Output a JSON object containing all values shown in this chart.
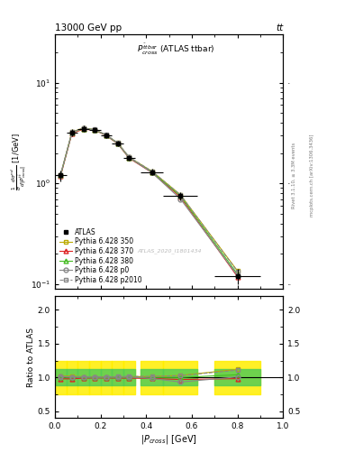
{
  "title_left": "13000 GeV pp",
  "title_right": "tt",
  "plot_title": "$P^{\\bar{t}tbar}_{cross}$ (ATLAS ttbar)",
  "xlabel": "$|P_{cross}|$ [GeV]",
  "ylabel_main": "$\\frac{1}{\\sigma}\\frac{d\\sigma^{nd}}{d|P^{t\\bar{t}}_{cross}|}$ [1/GeV]",
  "ylabel_ratio": "Ratio to ATLAS",
  "watermark": "ATLAS_2020_I1801434",
  "rivet_label": "Rivet 3.1.10, ≥ 3.3M events",
  "mcplots_label": "mcplots.cern.ch [arXiv:1306.3436]",
  "x_data": [
    0.025,
    0.075,
    0.125,
    0.175,
    0.225,
    0.275,
    0.325,
    0.425,
    0.55,
    0.8
  ],
  "xerr": [
    0.025,
    0.025,
    0.025,
    0.025,
    0.025,
    0.025,
    0.025,
    0.05,
    0.075,
    0.1
  ],
  "atlas_y": [
    1.2,
    3.2,
    3.5,
    3.4,
    3.0,
    2.5,
    1.8,
    1.3,
    0.75,
    0.12
  ],
  "atlas_yerr_lo": [
    0.15,
    0.25,
    0.25,
    0.2,
    0.2,
    0.15,
    0.12,
    0.1,
    0.07,
    0.02
  ],
  "atlas_yerr_hi": [
    0.15,
    0.25,
    0.25,
    0.2,
    0.2,
    0.15,
    0.12,
    0.1,
    0.07,
    0.02
  ],
  "py350_y": [
    1.22,
    3.25,
    3.55,
    3.42,
    3.02,
    2.52,
    1.82,
    1.32,
    0.77,
    0.135
  ],
  "py370_y": [
    1.18,
    3.15,
    3.45,
    3.38,
    2.98,
    2.48,
    1.78,
    1.28,
    0.73,
    0.118
  ],
  "py380_y": [
    1.2,
    3.2,
    3.5,
    3.4,
    3.0,
    2.5,
    1.8,
    1.3,
    0.75,
    0.125
  ],
  "pyp0_y": [
    1.22,
    3.22,
    3.52,
    3.41,
    3.01,
    2.51,
    1.81,
    1.28,
    0.7,
    0.121
  ],
  "pyp2010_y": [
    1.21,
    3.23,
    3.53,
    3.43,
    3.03,
    2.53,
    1.83,
    1.32,
    0.77,
    0.133
  ],
  "ratio_py350": [
    1.02,
    1.02,
    1.01,
    1.01,
    1.01,
    1.01,
    1.01,
    1.015,
    1.03,
    1.12
  ],
  "ratio_py370": [
    0.98,
    0.98,
    0.99,
    0.994,
    0.993,
    0.992,
    0.99,
    0.985,
    0.97,
    0.983
  ],
  "ratio_py380": [
    1.0,
    1.0,
    1.0,
    1.0,
    1.0,
    1.0,
    1.0,
    1.0,
    1.0,
    1.04
  ],
  "ratio_pyp0": [
    1.017,
    1.006,
    1.006,
    1.003,
    1.003,
    1.004,
    1.006,
    0.985,
    0.933,
    1.008
  ],
  "ratio_pyp2010": [
    1.008,
    1.009,
    1.009,
    1.009,
    1.01,
    1.012,
    1.017,
    1.015,
    1.027,
    1.108
  ],
  "color_py350": "#bbaa00",
  "color_py370": "#dd2222",
  "color_py380": "#44bb22",
  "color_pyp0": "#888888",
  "color_pyp2010": "#888888",
  "color_atlas": "#000000",
  "ylim_main": [
    0.09,
    30
  ],
  "ylim_ratio": [
    0.4,
    2.2
  ],
  "xlim": [
    0.0,
    1.0
  ],
  "background_color": "#ffffff",
  "yellow_band_lo": 0.75,
  "yellow_band_hi": 1.25,
  "green_band_lo": 0.88,
  "green_band_hi": 1.12
}
